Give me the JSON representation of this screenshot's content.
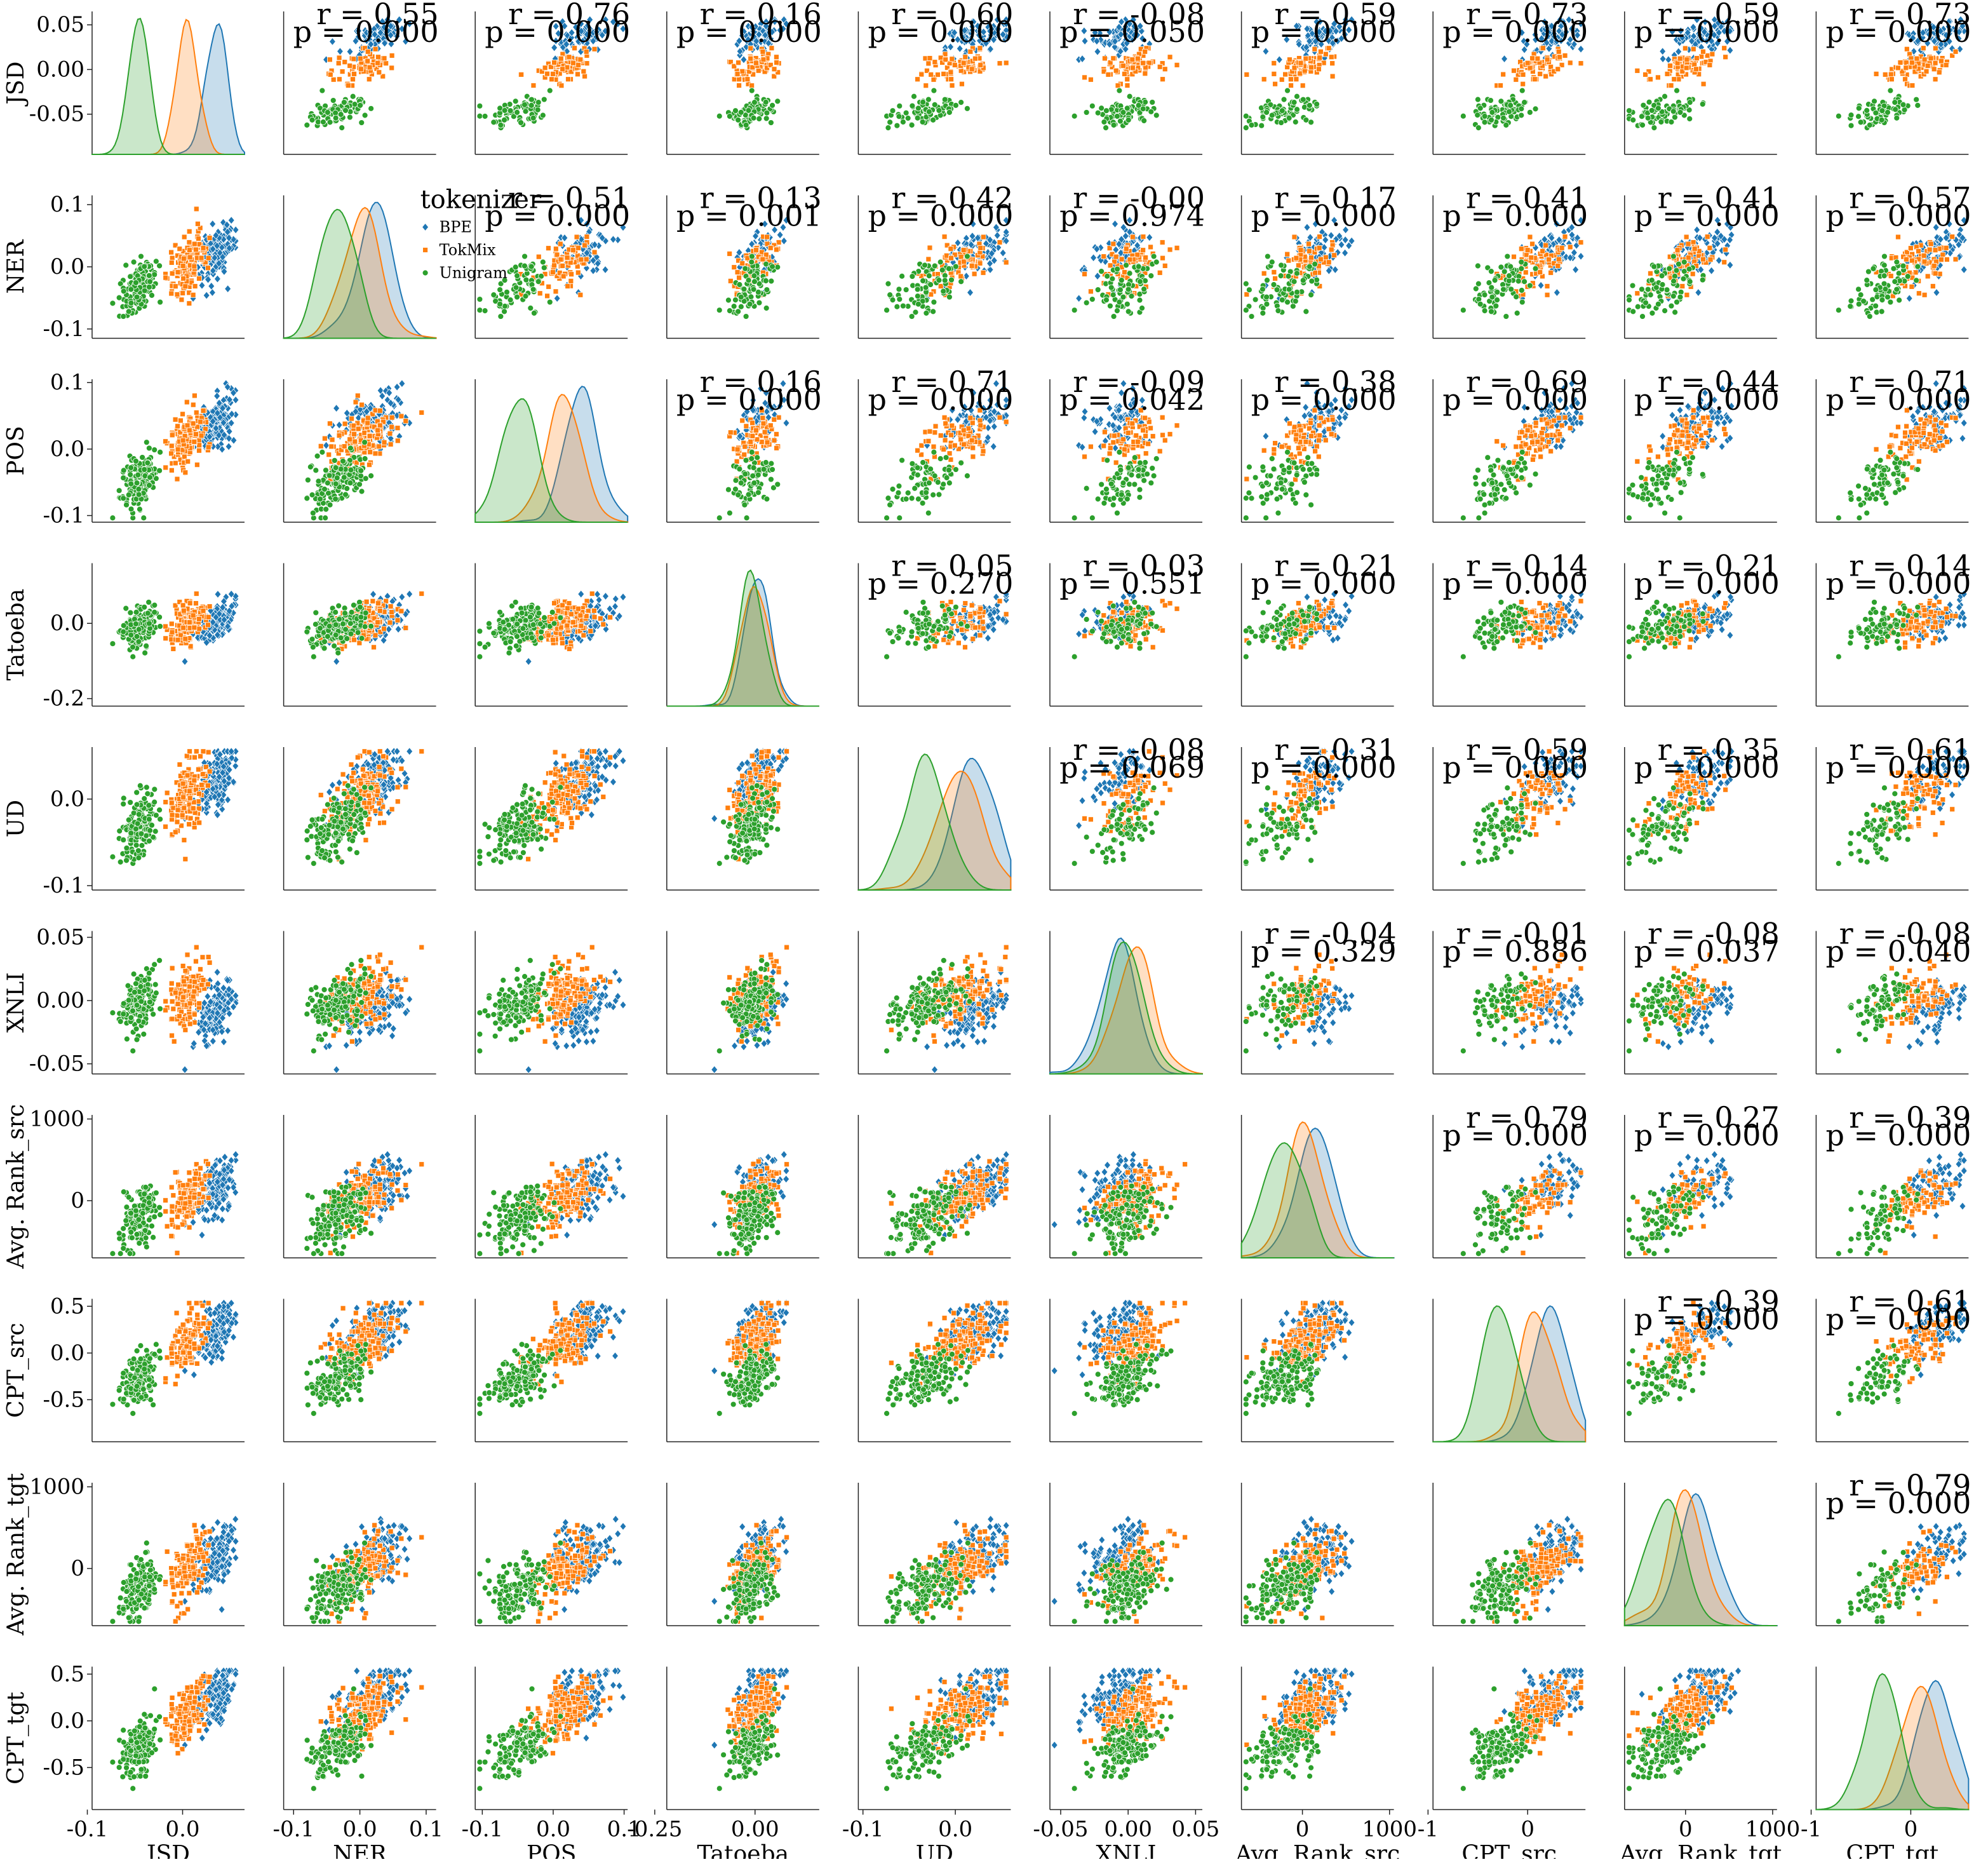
{
  "chart_data": {
    "type": "scatter",
    "variables": [
      "JSD",
      "NER",
      "POS",
      "Tatoeba",
      "UD",
      "XNLI",
      "Avg._Rank_src",
      "CPT_src",
      "Avg._Rank_tgt",
      "CPT_tgt"
    ],
    "axis_labels": [
      "JSD",
      "NER",
      "POS",
      "Tatoeba",
      "UD",
      "XNLI",
      "Avg. Rank_src",
      "CPT_src",
      "Avg. Rank_tgt",
      "CPT_tgt"
    ],
    "tick_labels": {
      "JSD": [
        "-0.1",
        "0.0"
      ],
      "NER": [
        "-0.1",
        "0.0",
        "0.1"
      ],
      "POS": [
        "-0.1",
        "0.0",
        "0.1"
      ],
      "Tatoeba": [
        "-0.25",
        "0.00"
      ],
      "UD": [
        "-0.1",
        "0.0"
      ],
      "XNLI": [
        "-0.05",
        "0.00",
        "0.05"
      ],
      "Avg._Rank_src": [
        "0",
        "1000"
      ],
      "CPT_src": [
        "-1",
        "0"
      ],
      "Avg._Rank_tgt": [
        "0",
        "1000"
      ],
      "CPT_tgt": [
        "-1",
        "0"
      ]
    },
    "row_tick_labels": {
      "JSD": [
        "0.05",
        "0.00",
        "-0.05"
      ],
      "NER": [
        "0.1",
        "0.0",
        "-0.1"
      ],
      "POS": [
        "0.1",
        "0.0",
        "-0.1"
      ],
      "Tatoeba": [
        "0.0",
        "-0.2"
      ],
      "UD": [
        "0.0",
        "-0.1"
      ],
      "XNLI": [
        "0.05",
        "0.00",
        "-0.05"
      ],
      "Avg._Rank_src": [
        "1000",
        "0"
      ],
      "CPT_src": [
        "0.5",
        "0.0",
        "-0.5"
      ],
      "Avg._Rank_tgt": [
        "1000",
        "0"
      ],
      "CPT_tgt": [
        "0.5",
        "0.0",
        "-0.5"
      ]
    },
    "ranges": {
      "JSD": [
        -0.095,
        0.065
      ],
      "NER": [
        -0.115,
        0.115
      ],
      "POS": [
        -0.11,
        0.105
      ],
      "Tatoeba": [
        -0.22,
        0.16
      ],
      "UD": [
        -0.105,
        0.06
      ],
      "XNLI": [
        -0.058,
        0.055
      ],
      "Avg._Rank_src": [
        -700,
        1050
      ],
      "CPT_src": [
        -0.95,
        0.58
      ],
      "Avg._Rank_tgt": [
        -700,
        1050
      ],
      "CPT_tgt": [
        -0.95,
        0.58
      ]
    },
    "series": [
      {
        "name": "BPE",
        "color": "#1f77b4",
        "marker": "diamond"
      },
      {
        "name": "TokMix",
        "color": "#ff7f0e",
        "marker": "square"
      },
      {
        "name": "Unigram",
        "color": "#2ca02c",
        "marker": "circle"
      }
    ],
    "legend": {
      "title": "tokenizer",
      "placement": "upper-left, inside NER–NER panel"
    },
    "correlations": [
      {
        "row": "JSD",
        "col": "NER",
        "r": "r = 0.55",
        "p": "p = 0.000"
      },
      {
        "row": "JSD",
        "col": "POS",
        "r": "r = 0.76",
        "p": "p = 0.000"
      },
      {
        "row": "JSD",
        "col": "Tatoeba",
        "r": "r = 0.16",
        "p": "p = 0.000"
      },
      {
        "row": "JSD",
        "col": "UD",
        "r": "r = 0.60",
        "p": "p = 0.000"
      },
      {
        "row": "JSD",
        "col": "XNLI",
        "r": "r = -0.08",
        "p": "p = 0.050"
      },
      {
        "row": "JSD",
        "col": "Avg._Rank_src",
        "r": "r = 0.59",
        "p": "p = 0.000"
      },
      {
        "row": "JSD",
        "col": "CPT_src",
        "r": "r = 0.73",
        "p": "p = 0.000"
      },
      {
        "row": "JSD",
        "col": "Avg._Rank_tgt",
        "r": "r = 0.59",
        "p": "p = 0.000"
      },
      {
        "row": "JSD",
        "col": "CPT_tgt",
        "r": "r = 0.73",
        "p": "p = 0.000"
      },
      {
        "row": "NER",
        "col": "POS",
        "r": "r = 0.51",
        "p": "p = 0.000"
      },
      {
        "row": "NER",
        "col": "Tatoeba",
        "r": "r = 0.13",
        "p": "p = 0.001"
      },
      {
        "row": "NER",
        "col": "UD",
        "r": "r = 0.42",
        "p": "p = 0.000"
      },
      {
        "row": "NER",
        "col": "XNLI",
        "r": "r = -0.00",
        "p": "p = 0.974"
      },
      {
        "row": "NER",
        "col": "Avg._Rank_src",
        "r": "r = 0.17",
        "p": "p = 0.000"
      },
      {
        "row": "NER",
        "col": "CPT_src",
        "r": "r = 0.41",
        "p": "p = 0.000"
      },
      {
        "row": "NER",
        "col": "Avg._Rank_tgt",
        "r": "r = 0.41",
        "p": "p = 0.000"
      },
      {
        "row": "NER",
        "col": "CPT_tgt",
        "r": "r = 0.57",
        "p": "p = 0.000"
      },
      {
        "row": "POS",
        "col": "Tatoeba",
        "r": "r = 0.16",
        "p": "p = 0.000"
      },
      {
        "row": "POS",
        "col": "UD",
        "r": "r = 0.71",
        "p": "p = 0.000"
      },
      {
        "row": "POS",
        "col": "XNLI",
        "r": "r = -0.09",
        "p": "p = 0.042"
      },
      {
        "row": "POS",
        "col": "Avg._Rank_src",
        "r": "r = 0.38",
        "p": "p = 0.000"
      },
      {
        "row": "POS",
        "col": "CPT_src",
        "r": "r = 0.69",
        "p": "p = 0.000"
      },
      {
        "row": "POS",
        "col": "Avg._Rank_tgt",
        "r": "r = 0.44",
        "p": "p = 0.000"
      },
      {
        "row": "POS",
        "col": "CPT_tgt",
        "r": "r = 0.71",
        "p": "p = 0.000"
      },
      {
        "row": "Tatoeba",
        "col": "UD",
        "r": "r = 0.05",
        "p": "p = 0.270"
      },
      {
        "row": "Tatoeba",
        "col": "XNLI",
        "r": "r = 0.03",
        "p": "p = 0.551"
      },
      {
        "row": "Tatoeba",
        "col": "Avg._Rank_src",
        "r": "r = 0.21",
        "p": "p = 0.000"
      },
      {
        "row": "Tatoeba",
        "col": "CPT_src",
        "r": "r = 0.14",
        "p": "p = 0.000"
      },
      {
        "row": "Tatoeba",
        "col": "Avg._Rank_tgt",
        "r": "r = 0.21",
        "p": "p = 0.000"
      },
      {
        "row": "Tatoeba",
        "col": "CPT_tgt",
        "r": "r = 0.14",
        "p": "p = 0.000"
      },
      {
        "row": "UD",
        "col": "XNLI",
        "r": "r = -0.08",
        "p": "p = 0.069"
      },
      {
        "row": "UD",
        "col": "Avg._Rank_src",
        "r": "r = 0.31",
        "p": "p = 0.000"
      },
      {
        "row": "UD",
        "col": "CPT_src",
        "r": "r = 0.59",
        "p": "p = 0.000"
      },
      {
        "row": "UD",
        "col": "Avg._Rank_tgt",
        "r": "r = 0.35",
        "p": "p = 0.000"
      },
      {
        "row": "UD",
        "col": "CPT_tgt",
        "r": "r = 0.61",
        "p": "p = 0.000"
      },
      {
        "row": "XNLI",
        "col": "Avg._Rank_src",
        "r": "r = -0.04",
        "p": "p = 0.329"
      },
      {
        "row": "XNLI",
        "col": "CPT_src",
        "r": "r = -0.01",
        "p": "p = 0.886"
      },
      {
        "row": "XNLI",
        "col": "Avg._Rank_tgt",
        "r": "r = -0.08",
        "p": "p = 0.037"
      },
      {
        "row": "XNLI",
        "col": "CPT_tgt",
        "r": "r = -0.08",
        "p": "p = 0.040"
      },
      {
        "row": "Avg._Rank_src",
        "col": "CPT_src",
        "r": "r = 0.79",
        "p": "p = 0.000"
      },
      {
        "row": "Avg._Rank_src",
        "col": "Avg._Rank_tgt",
        "r": "r = 0.27",
        "p": "p = 0.000"
      },
      {
        "row": "Avg._Rank_src",
        "col": "CPT_tgt",
        "r": "r = 0.39",
        "p": "p = 0.000"
      },
      {
        "row": "CPT_src",
        "col": "Avg._Rank_tgt",
        "r": "r = 0.39",
        "p": "p = 0.000"
      },
      {
        "row": "CPT_src",
        "col": "CPT_tgt",
        "r": "r = 0.61",
        "p": "p = 0.000"
      },
      {
        "row": "Avg._Rank_tgt",
        "col": "CPT_tgt",
        "r": "r = 0.79",
        "p": "p = 0.000"
      }
    ],
    "group_means": {
      "BPE": {
        "JSD": 0.035,
        "NER": 0.02,
        "POS": 0.04,
        "Tatoeba": 0.005,
        "UD": 0.02,
        "XNLI": -0.008,
        "Avg._Rank_src": 150,
        "CPT_src": 0.25,
        "Avg._Rank_tgt": 150,
        "CPT_tgt": 0.25
      },
      "TokMix": {
        "JSD": 0.005,
        "NER": 0.005,
        "POS": 0.015,
        "Tatoeba": 0.0,
        "UD": 0.005,
        "XNLI": 0.005,
        "Avg._Rank_src": 0,
        "CPT_src": 0.1,
        "Avg._Rank_tgt": 0,
        "CPT_tgt": 0.1
      },
      "Unigram": {
        "JSD": -0.045,
        "NER": -0.03,
        "POS": -0.05,
        "Tatoeba": -0.005,
        "UD": -0.03,
        "XNLI": 0.0,
        "Avg._Rank_src": -200,
        "CPT_src": -0.25,
        "Avg._Rank_tgt": -200,
        "CPT_tgt": -0.25
      }
    },
    "group_spread": {
      "JSD": 0.012,
      "NER": 0.03,
      "POS": 0.028,
      "Tatoeba": 0.035,
      "UD": 0.025,
      "XNLI": 0.015,
      "Avg._Rank_src": 250,
      "CPT_src": 0.2,
      "Avg._Rank_tgt": 250,
      "CPT_tgt": 0.2
    },
    "points_per_series": 150,
    "grid": false
  }
}
